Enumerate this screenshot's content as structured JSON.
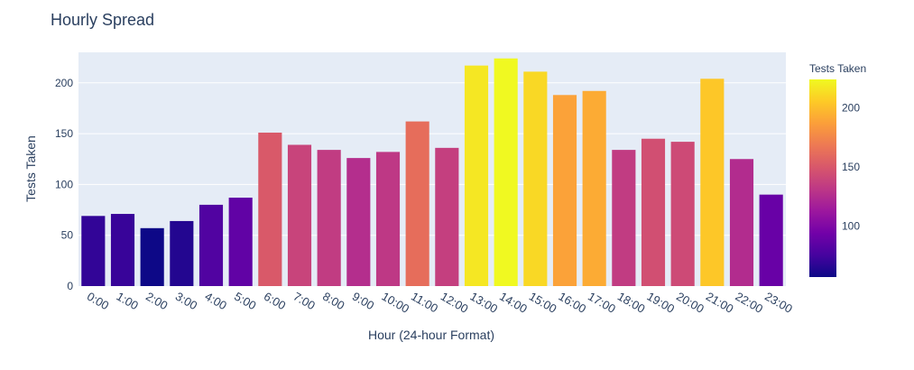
{
  "chart_data": {
    "type": "bar",
    "title": "Hourly Spread",
    "xlabel": "Hour (24-hour Format)",
    "ylabel": "Tests Taken",
    "categories": [
      "0:00",
      "1:00",
      "2:00",
      "3:00",
      "4:00",
      "5:00",
      "6:00",
      "7:00",
      "8:00",
      "9:00",
      "10:00",
      "11:00",
      "12:00",
      "13:00",
      "14:00",
      "15:00",
      "16:00",
      "17:00",
      "18:00",
      "19:00",
      "20:00",
      "21:00",
      "22:00",
      "23:00"
    ],
    "values": [
      69,
      71,
      57,
      64,
      80,
      87,
      151,
      139,
      134,
      126,
      132,
      162,
      136,
      217,
      224,
      211,
      188,
      192,
      134,
      145,
      142,
      204,
      125,
      90
    ],
    "ylim": [
      0,
      230
    ],
    "yticks": [
      0,
      50,
      100,
      150,
      200
    ],
    "grid": true,
    "background_color": "#e5ecf6",
    "colorscale": "plasma",
    "colorbar": {
      "title": "Tests Taken",
      "range": [
        57,
        224
      ],
      "ticks": [
        100,
        150,
        200
      ],
      "placement": "right"
    }
  }
}
